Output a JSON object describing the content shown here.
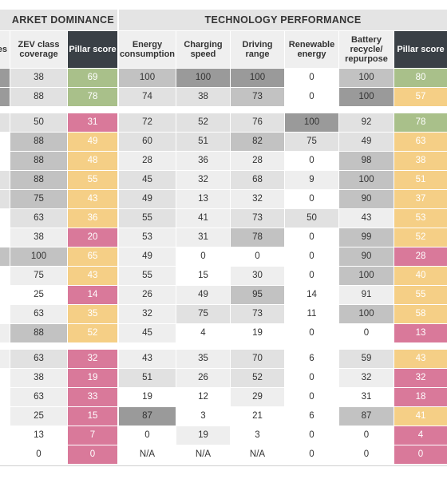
{
  "group_headers": {
    "market": "ARKET DOMINANCE",
    "technology": "TECHNOLOGY PERFORMANCE"
  },
  "columns": [
    {
      "key": "cut",
      "label": "es"
    },
    {
      "key": "zev",
      "label": "ZEV class coverage"
    },
    {
      "key": "pillar1",
      "label": "Pillar score"
    },
    {
      "key": "energy",
      "label": "Energy consumption"
    },
    {
      "key": "charging",
      "label": "Charging speed"
    },
    {
      "key": "range",
      "label": "Driving range"
    },
    {
      "key": "renewable",
      "label": "Renewable energy"
    },
    {
      "key": "battery",
      "label": "Battery recycle/ repurpose"
    },
    {
      "key": "pillar2",
      "label": "Pillar score"
    }
  ],
  "colors": {
    "green": "#a9c08a",
    "yellow": "#f5cf86",
    "pink": "#d9799a",
    "dark": "#9a9a9a",
    "medium": "#c2c2c2",
    "light": "#e1e1e1",
    "lightest": "#eeeeee",
    "white": "#ffffff"
  },
  "rows": [
    {
      "cells": [
        "",
        "38",
        "69",
        "100",
        "100",
        "100",
        "0",
        "100",
        "80"
      ],
      "shades": [
        "dark",
        "light",
        "green",
        "medium",
        "dark",
        "dark",
        "white",
        "medium",
        "green"
      ]
    },
    {
      "cells": [
        "",
        "88",
        "78",
        "74",
        "38",
        "73",
        "0",
        "100",
        "57"
      ],
      "shades": [
        "dark",
        "light",
        "green",
        "light",
        "light",
        "medium",
        "white",
        "dark",
        "yellow"
      ]
    },
    {
      "cells": [
        "",
        "50",
        "31",
        "72",
        "52",
        "76",
        "100",
        "92",
        "78"
      ],
      "shades": [
        "light",
        "light",
        "pink",
        "light",
        "light",
        "light",
        "dark",
        "light",
        "green"
      ]
    },
    {
      "cells": [
        "",
        "88",
        "49",
        "60",
        "51",
        "82",
        "75",
        "49",
        "63"
      ],
      "shades": [
        "white",
        "medium",
        "yellow",
        "light",
        "light",
        "medium",
        "light",
        "light",
        "yellow"
      ]
    },
    {
      "cells": [
        "",
        "88",
        "48",
        "28",
        "36",
        "28",
        "0",
        "98",
        "38"
      ],
      "shades": [
        "white",
        "medium",
        "yellow",
        "lightest",
        "lightest",
        "lightest",
        "white",
        "medium",
        "yellow"
      ]
    },
    {
      "cells": [
        "",
        "88",
        "55",
        "45",
        "32",
        "68",
        "9",
        "100",
        "51"
      ],
      "shades": [
        "light",
        "medium",
        "yellow",
        "light",
        "lightest",
        "light",
        "lightest",
        "medium",
        "yellow"
      ]
    },
    {
      "cells": [
        "",
        "75",
        "43",
        "49",
        "13",
        "32",
        "0",
        "90",
        "37"
      ],
      "shades": [
        "light",
        "medium",
        "yellow",
        "light",
        "lightest",
        "lightest",
        "white",
        "medium",
        "yellow"
      ]
    },
    {
      "cells": [
        "",
        "63",
        "36",
        "55",
        "41",
        "73",
        "50",
        "43",
        "53"
      ],
      "shades": [
        "white",
        "light",
        "yellow",
        "light",
        "lightest",
        "light",
        "light",
        "lightest",
        "yellow"
      ]
    },
    {
      "cells": [
        "",
        "38",
        "20",
        "53",
        "31",
        "78",
        "0",
        "99",
        "52"
      ],
      "shades": [
        "white",
        "lightest",
        "pink",
        "lightest",
        "lightest",
        "medium",
        "white",
        "medium",
        "yellow"
      ]
    },
    {
      "cells": [
        "",
        "100",
        "65",
        "49",
        "0",
        "0",
        "0",
        "90",
        "28"
      ],
      "shades": [
        "medium",
        "medium",
        "yellow",
        "lightest",
        "white",
        "white",
        "white",
        "medium",
        "pink"
      ]
    },
    {
      "cells": [
        "",
        "75",
        "43",
        "55",
        "15",
        "30",
        "0",
        "100",
        "40"
      ],
      "shades": [
        "white",
        "lightest",
        "yellow",
        "lightest",
        "white",
        "lightest",
        "white",
        "medium",
        "yellow"
      ]
    },
    {
      "cells": [
        "",
        "25",
        "14",
        "26",
        "49",
        "95",
        "14",
        "91",
        "55"
      ],
      "shades": [
        "white",
        "white",
        "pink",
        "lightest",
        "lightest",
        "medium",
        "white",
        "lightest",
        "yellow"
      ]
    },
    {
      "cells": [
        "",
        "63",
        "35",
        "32",
        "75",
        "73",
        "11",
        "100",
        "58"
      ],
      "shades": [
        "white",
        "lightest",
        "yellow",
        "lightest",
        "light",
        "light",
        "white",
        "medium",
        "yellow"
      ]
    },
    {
      "cells": [
        "",
        "88",
        "52",
        "45",
        "4",
        "19",
        "0",
        "0",
        "13"
      ],
      "shades": [
        "lightest",
        "medium",
        "yellow",
        "lightest",
        "white",
        "white",
        "white",
        "white",
        "pink"
      ]
    },
    {
      "cells": [
        "",
        "63",
        "32",
        "43",
        "35",
        "70",
        "6",
        "59",
        "43"
      ],
      "shades": [
        "lightest",
        "light",
        "pink",
        "lightest",
        "lightest",
        "light",
        "white",
        "light",
        "yellow"
      ]
    },
    {
      "cells": [
        "",
        "38",
        "19",
        "51",
        "26",
        "52",
        "0",
        "32",
        "32"
      ],
      "shades": [
        "white",
        "lightest",
        "pink",
        "light",
        "lightest",
        "light",
        "white",
        "lightest",
        "pink"
      ]
    },
    {
      "cells": [
        "",
        "63",
        "33",
        "19",
        "12",
        "29",
        "0",
        "31",
        "18"
      ],
      "shades": [
        "white",
        "lightest",
        "pink",
        "white",
        "white",
        "lightest",
        "white",
        "white",
        "pink"
      ]
    },
    {
      "cells": [
        "",
        "25",
        "15",
        "87",
        "3",
        "21",
        "6",
        "87",
        "41"
      ],
      "shades": [
        "white",
        "lightest",
        "pink",
        "dark",
        "white",
        "white",
        "white",
        "medium",
        "yellow"
      ]
    },
    {
      "cells": [
        "",
        "13",
        "7",
        "0",
        "19",
        "3",
        "0",
        "0",
        "4"
      ],
      "shades": [
        "white",
        "white",
        "pink",
        "white",
        "lightest",
        "white",
        "white",
        "white",
        "pink"
      ]
    },
    {
      "cells": [
        "",
        "0",
        "0",
        "N/A",
        "N/A",
        "N/A",
        "0",
        "0",
        "0"
      ],
      "shades": [
        "white",
        "white",
        "pink",
        "white",
        "white",
        "white",
        "white",
        "white",
        "pink"
      ]
    }
  ]
}
